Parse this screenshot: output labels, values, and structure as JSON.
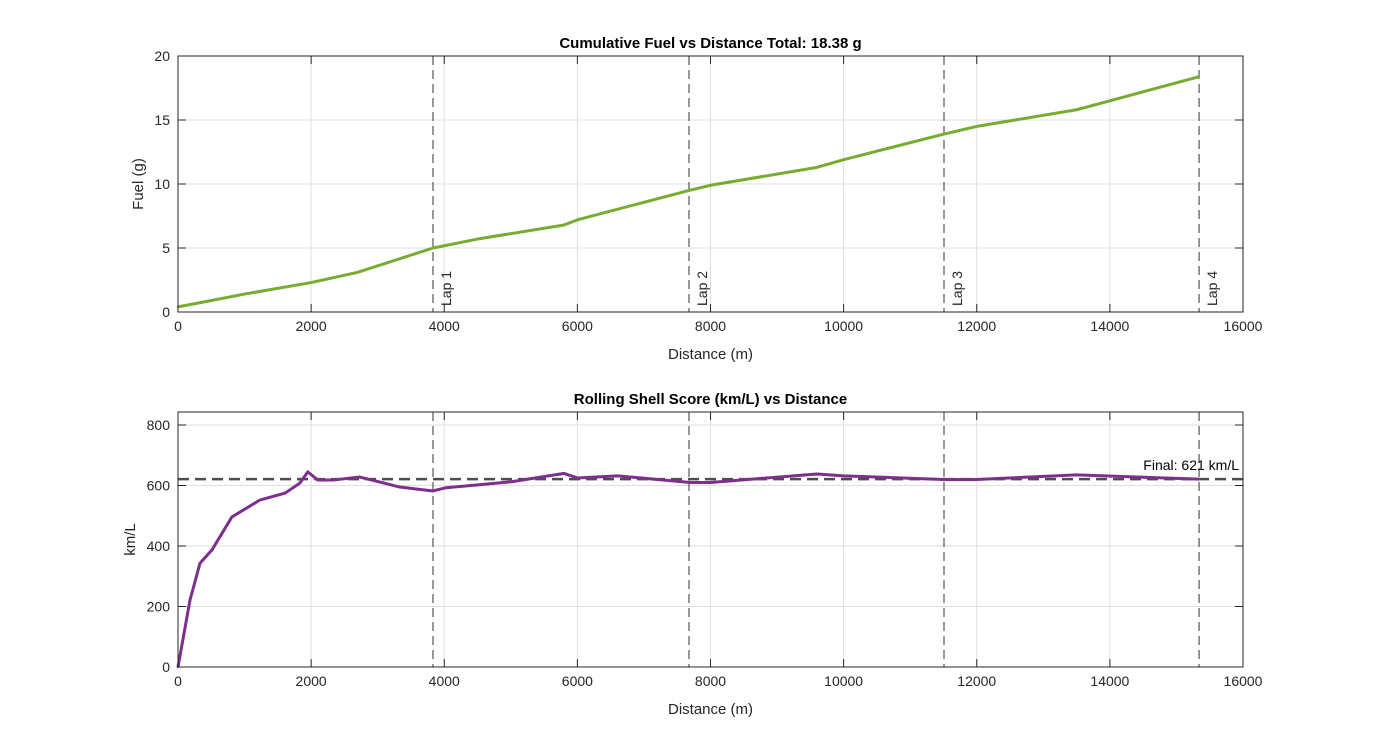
{
  "chart_data": [
    {
      "type": "line",
      "title": "Cumulative Fuel vs Distance   Total: 18.38 g",
      "xlabel": "Distance (m)",
      "ylabel": "Fuel (g)",
      "xlim": [
        0,
        16000
      ],
      "ylim": [
        0,
        20
      ],
      "grid": true,
      "xticks": [
        "0",
        "2000",
        "4000",
        "6000",
        "8000",
        "10000",
        "12000",
        "14000",
        "16000"
      ],
      "yticks": [
        "0",
        "5",
        "10",
        "15",
        "20"
      ],
      "color": "#77AC30",
      "x": [
        0,
        500,
        1000,
        2000,
        2700,
        3831,
        4500,
        5800,
        6000,
        7677,
        8000,
        9600,
        10000,
        11508,
        12000,
        13500,
        14000,
        15340
      ],
      "y": [
        0.4,
        0.9,
        1.4,
        2.3,
        3.1,
        5.0,
        5.7,
        6.8,
        7.2,
        9.5,
        9.9,
        11.3,
        11.9,
        13.9,
        14.5,
        15.8,
        16.5,
        18.38
      ],
      "vlines": [
        {
          "x": 3831,
          "label": "Lap 1"
        },
        {
          "x": 7677,
          "label": "Lap 2"
        },
        {
          "x": 11508,
          "label": "Lap 3"
        },
        {
          "x": 15340,
          "label": "Lap 4"
        }
      ]
    },
    {
      "type": "line",
      "title": "Rolling Shell Score (km/L) vs Distance",
      "xlabel": "Distance (m)",
      "ylabel": "km/L",
      "xlim": [
        0,
        16000
      ],
      "ylim": [
        0,
        843
      ],
      "grid": true,
      "xticks": [
        "0",
        "2000",
        "4000",
        "6000",
        "8000",
        "10000",
        "12000",
        "14000",
        "16000"
      ],
      "yticks": [
        "0",
        "200",
        "400",
        "600",
        "800"
      ],
      "color": "#7E2F8E",
      "x": [
        0,
        180,
        330,
        510,
        810,
        1230,
        1610,
        1830,
        1950,
        2100,
        2330,
        2730,
        3330,
        3830,
        4010,
        5000,
        5800,
        6000,
        6600,
        7700,
        8000,
        9600,
        10000,
        11500,
        12000,
        13500,
        15340
      ],
      "y": [
        0,
        221,
        343,
        387,
        496,
        552,
        575,
        608,
        645,
        618,
        618,
        628,
        595,
        582,
        592,
        612,
        640,
        625,
        632,
        610,
        610,
        638,
        632,
        620,
        620,
        635,
        621
      ],
      "hline": {
        "y": 621,
        "label": "Final: 621 km/L"
      },
      "vlines": [
        {
          "x": 3831
        },
        {
          "x": 7677
        },
        {
          "x": 11508
        },
        {
          "x": 15340
        }
      ]
    }
  ]
}
